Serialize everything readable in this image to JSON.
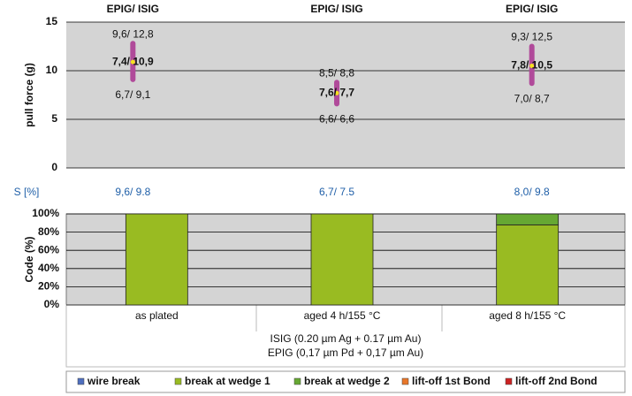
{
  "chart_data": [
    {
      "type": "strip",
      "ylabel": "pull force (g)",
      "ylim": [
        0,
        15
      ],
      "yticks": [
        0,
        5,
        10,
        15
      ],
      "grid": true,
      "headers": [
        "EPIG/ ISIG",
        "EPIG/ ISIG",
        "EPIG/ ISIG"
      ],
      "min": [
        9.1,
        6.6,
        8.7
      ],
      "max": [
        12.8,
        8.8,
        12.5
      ],
      "mean": [
        10.9,
        7.7,
        10.5
      ],
      "color": "#b04a9a",
      "mean_color": "#f5e020",
      "max_labels": [
        "9,6/ 12,8",
        "8,5/ 8,8",
        "9,3/ 12,5"
      ],
      "mean_labels": [
        "7,4/ 10,9",
        "7,6/ 7,7",
        "7,8/ 10,5"
      ],
      "min_labels": [
        "6,7/ 9,1",
        "6,6/ 6,6",
        "7,0/ 8,7"
      ],
      "s_label": "S [%]",
      "s_values": [
        "9,6/ 9.8",
        "6,7/ 7.5",
        "8,0/ 9.8"
      ]
    },
    {
      "type": "stacked_bar",
      "ylabel": "Code (%)",
      "categories": [
        "as plated",
        "aged 4 h/155 °C",
        "aged 8 h/155 °C"
      ],
      "series": [
        {
          "name": "wire break",
          "color": "#4f6fbf",
          "values": [
            0,
            0,
            0
          ]
        },
        {
          "name": "break at wedge 1",
          "color": "#99bb22",
          "values": [
            100,
            100,
            88
          ]
        },
        {
          "name": "break at wedge 2",
          "color": "#66a833",
          "values": [
            0,
            0,
            12
          ]
        },
        {
          "name": "lift-off 1st Bond",
          "color": "#e8772a",
          "values": [
            0,
            0,
            0
          ]
        },
        {
          "name": "lift-off 2nd Bond",
          "color": "#cc2222",
          "values": [
            0,
            0,
            0
          ]
        }
      ],
      "ylim": [
        0,
        100
      ],
      "yticks": [
        {
          "value": 0,
          "label": "0%"
        },
        {
          "value": 20,
          "label": "20%"
        },
        {
          "value": 40,
          "label": "40%"
        },
        {
          "value": 60,
          "label": "60%"
        },
        {
          "value": 80,
          "label": "80%"
        },
        {
          "value": 100,
          "label": "100%"
        }
      ],
      "notes": [
        "ISIG (0.20 µm Ag + 0.17 µm Au)",
        "EPIG (0,17 µm Pd + 0,17 µm Au)"
      ]
    }
  ]
}
